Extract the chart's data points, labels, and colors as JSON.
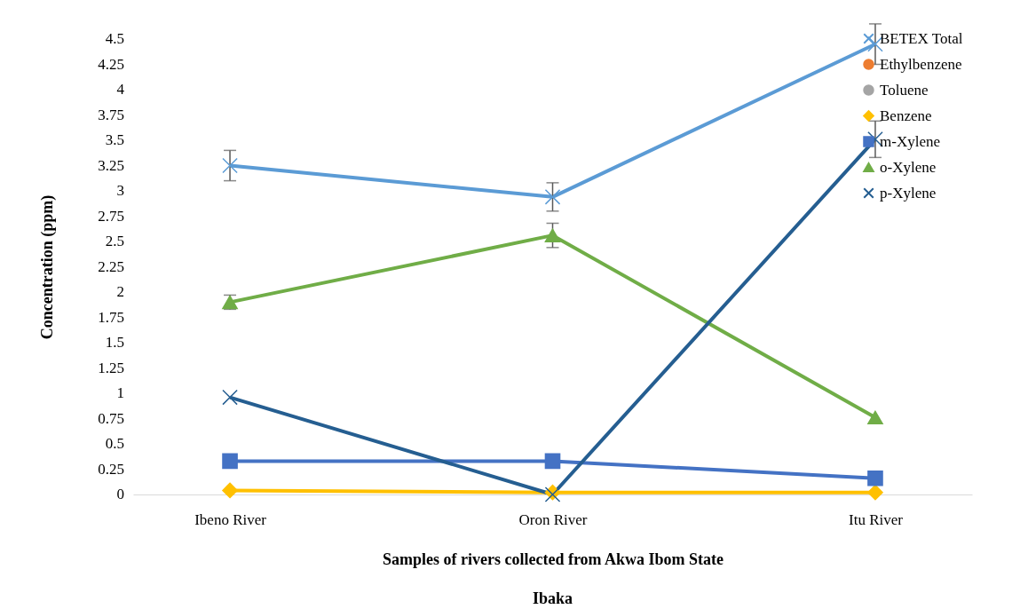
{
  "chart_data": {
    "type": "line",
    "xlabel": "Samples of rivers collected from Akwa Ibom State",
    "ylabel": "Concentration (ppm)",
    "annotations": [
      "Ibaka"
    ],
    "categories": [
      "Ibeno River",
      "Oron River",
      "Itu River"
    ],
    "series": [
      {
        "name": "BETEX Total",
        "color": "#5b9bd5",
        "marker": "cross",
        "values": [
          3.25,
          2.94,
          4.45
        ],
        "errors": [
          0.15,
          0.14,
          0.2
        ]
      },
      {
        "name": "Ethylbenzene",
        "color": "#ed7d31",
        "marker": "circle",
        "values": [
          null,
          null,
          null
        ]
      },
      {
        "name": "Toluene",
        "color": "#a5a5a5",
        "marker": "circle",
        "values": [
          null,
          null,
          null
        ]
      },
      {
        "name": "Benzene",
        "color": "#ffc000",
        "marker": "diamond",
        "values": [
          0.04,
          0.02,
          0.02
        ]
      },
      {
        "name": "m-Xylene",
        "color": "#4472c4",
        "marker": "square",
        "values": [
          0.33,
          0.33,
          0.16
        ]
      },
      {
        "name": "o-Xylene",
        "color": "#70ad47",
        "marker": "triangle",
        "values": [
          1.9,
          2.56,
          0.76
        ],
        "errors": [
          0.07,
          0.12,
          null
        ]
      },
      {
        "name": "p-Xylene",
        "color": "#255e91",
        "marker": "cross",
        "values": [
          0.96,
          0,
          3.51
        ],
        "errors": [
          null,
          null,
          0.18
        ]
      }
    ],
    "ylim": [
      0,
      4.5
    ],
    "yticks": [
      0,
      0.25,
      0.5,
      0.75,
      1,
      1.25,
      1.5,
      1.75,
      2,
      2.25,
      2.5,
      2.75,
      3,
      3.25,
      3.5,
      3.75,
      4,
      4.25,
      4.5
    ],
    "legend": "top right",
    "grid": false
  }
}
